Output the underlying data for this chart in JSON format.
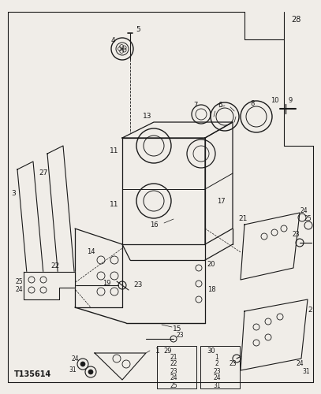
{
  "bg": "#f0ede8",
  "lc": "#1a1a1a",
  "tc": "#1a1a1a",
  "title": "T135614",
  "note_29": [
    "21",
    "22",
    "23",
    "24",
    "25"
  ],
  "note_30": [
    "1",
    "2",
    "23",
    "24",
    "31"
  ]
}
